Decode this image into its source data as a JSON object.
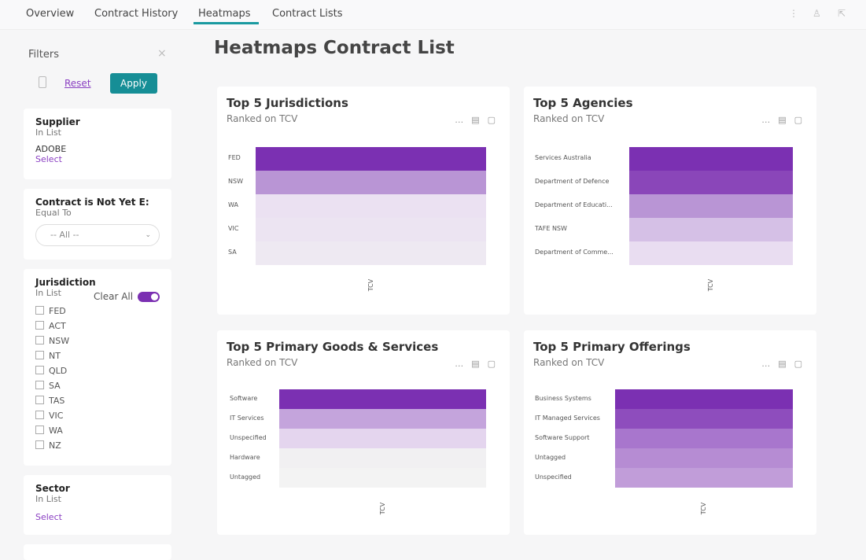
{
  "tabs": [
    "Overview",
    "Contract History",
    "Heatmaps",
    "Contract Lists"
  ],
  "filters": {
    "title": "Filters",
    "reset": "Reset",
    "apply": "Apply",
    "cards": [
      {
        "title": "Supplier",
        "operator": "In List",
        "value": "ADOBE",
        "link": "Select"
      },
      {
        "title": "Contract is Not Yet E:",
        "operator": "Equal To",
        "dropdown": "-- All --"
      },
      {
        "title": "Jurisdiction",
        "operator": "In List",
        "clear": "Clear All",
        "options": [
          "FED",
          "ACT",
          "NSW",
          "NT",
          "QLD",
          "SA",
          "TAS",
          "VIC",
          "WA",
          "NZ"
        ]
      },
      {
        "title": "Sector",
        "operator": "In List",
        "link": "Select"
      }
    ]
  },
  "page_title": "Heatmaps Contract List",
  "panels": [
    {
      "title": "Top 5 Jurisdictions",
      "subtitle": "Ranked on TCV",
      "axis_label": "TCV",
      "rows": [
        "FED",
        "NSW",
        "WA",
        "VIC",
        "SA"
      ],
      "colors": [
        "#7b30b2",
        "#b995d5",
        "#ebe1f2",
        "#ece4f2",
        "#eee9f2"
      ]
    },
    {
      "title": "Top 5 Agencies",
      "subtitle": "Ranked on TCV",
      "axis_label": "TCV",
      "rows": [
        "Services Australia",
        "Department of Defence",
        "Department of Educati...",
        "TAFE NSW",
        "Department of Comme..."
      ],
      "colors": [
        "#7b30b2",
        "#8a46b9",
        "#b995d5",
        "#d5c0e6",
        "#e9ddf1"
      ]
    },
    {
      "title": "Top 5 Primary Goods & Services",
      "subtitle": "Ranked on TCV",
      "axis_label": "TCV",
      "rows": [
        "Software",
        "IT Services",
        "Unspecified",
        "Hardware",
        "Untagged"
      ],
      "colors": [
        "#7b30b2",
        "#c4a4dc",
        "#e4d5ee",
        "#f1f0f2",
        "#f3f3f3"
      ]
    },
    {
      "title": "Top 5 Primary Offerings",
      "subtitle": "Ranked on TCV",
      "axis_label": "TCV",
      "rows": [
        "Business Systems",
        "IT Managed Services",
        "Software Support",
        "Untagged",
        "Unspecified"
      ],
      "colors": [
        "#7b30b2",
        "#8e4dbd",
        "#a876cd",
        "#b68cd3",
        "#c19dd9"
      ]
    }
  ]
}
